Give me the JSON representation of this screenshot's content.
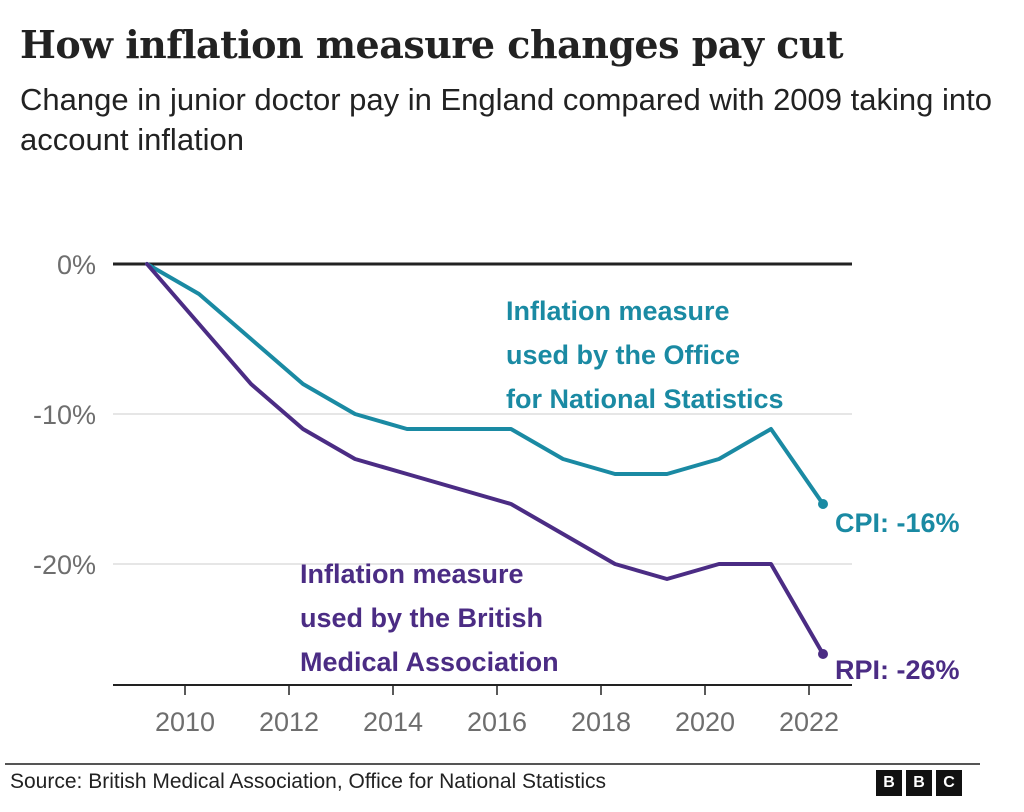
{
  "header": {
    "title": "How inflation measure changes pay cut",
    "subtitle": "Change in junior doctor pay in England compared with 2009 taking into account inflation"
  },
  "footer": {
    "source": "Source: British Medical Association, Office for National Statistics",
    "logo_letters": [
      "B",
      "B",
      "C"
    ]
  },
  "colors": {
    "cpi": "#1a8aa3",
    "rpi": "#4b2c84",
    "axis_text": "#6e6e6e",
    "zero_line": "#222222",
    "grid": "#dddddd"
  },
  "chart_data": {
    "type": "line",
    "title": "How inflation measure changes pay cut",
    "subtitle": "Change in junior doctor pay in England compared with 2009 taking into account inflation",
    "xlabel": "",
    "ylabel": "",
    "x": [
      2009,
      2010,
      2011,
      2012,
      2013,
      2014,
      2015,
      2016,
      2017,
      2018,
      2019,
      2020,
      2021,
      2022
    ],
    "xlim": [
      2008.3,
      2022.8
    ],
    "ylim": [
      -28,
      0
    ],
    "x_ticks": [
      2010,
      2012,
      2014,
      2016,
      2018,
      2020,
      2022
    ],
    "x_tick_labels": [
      "2010",
      "2012",
      "2014",
      "2016",
      "2018",
      "2020",
      "2022"
    ],
    "y_ticks": [
      0,
      -10,
      -20
    ],
    "y_tick_labels": [
      "0%",
      "-10%",
      "-20%"
    ],
    "grid": true,
    "series": [
      {
        "name": "CPI",
        "key": "cpi",
        "values": [
          0,
          -2,
          -5,
          -8,
          -10,
          -11,
          -11,
          -11,
          -13,
          -14,
          -14,
          -13,
          -11,
          -16
        ],
        "end_label": "CPI: -16%",
        "annotation": [
          "Inflation measure",
          "used by the Office",
          "for National Statistics"
        ]
      },
      {
        "name": "RPI",
        "key": "rpi",
        "values": [
          0,
          -4,
          -8,
          -11,
          -13,
          -14,
          -15,
          -16,
          -18,
          -20,
          -21,
          -20,
          -20,
          -26
        ],
        "end_label": "RPI: -26%",
        "annotation": [
          "Inflation measure",
          "used by the British",
          "Medical Association"
        ]
      }
    ]
  }
}
